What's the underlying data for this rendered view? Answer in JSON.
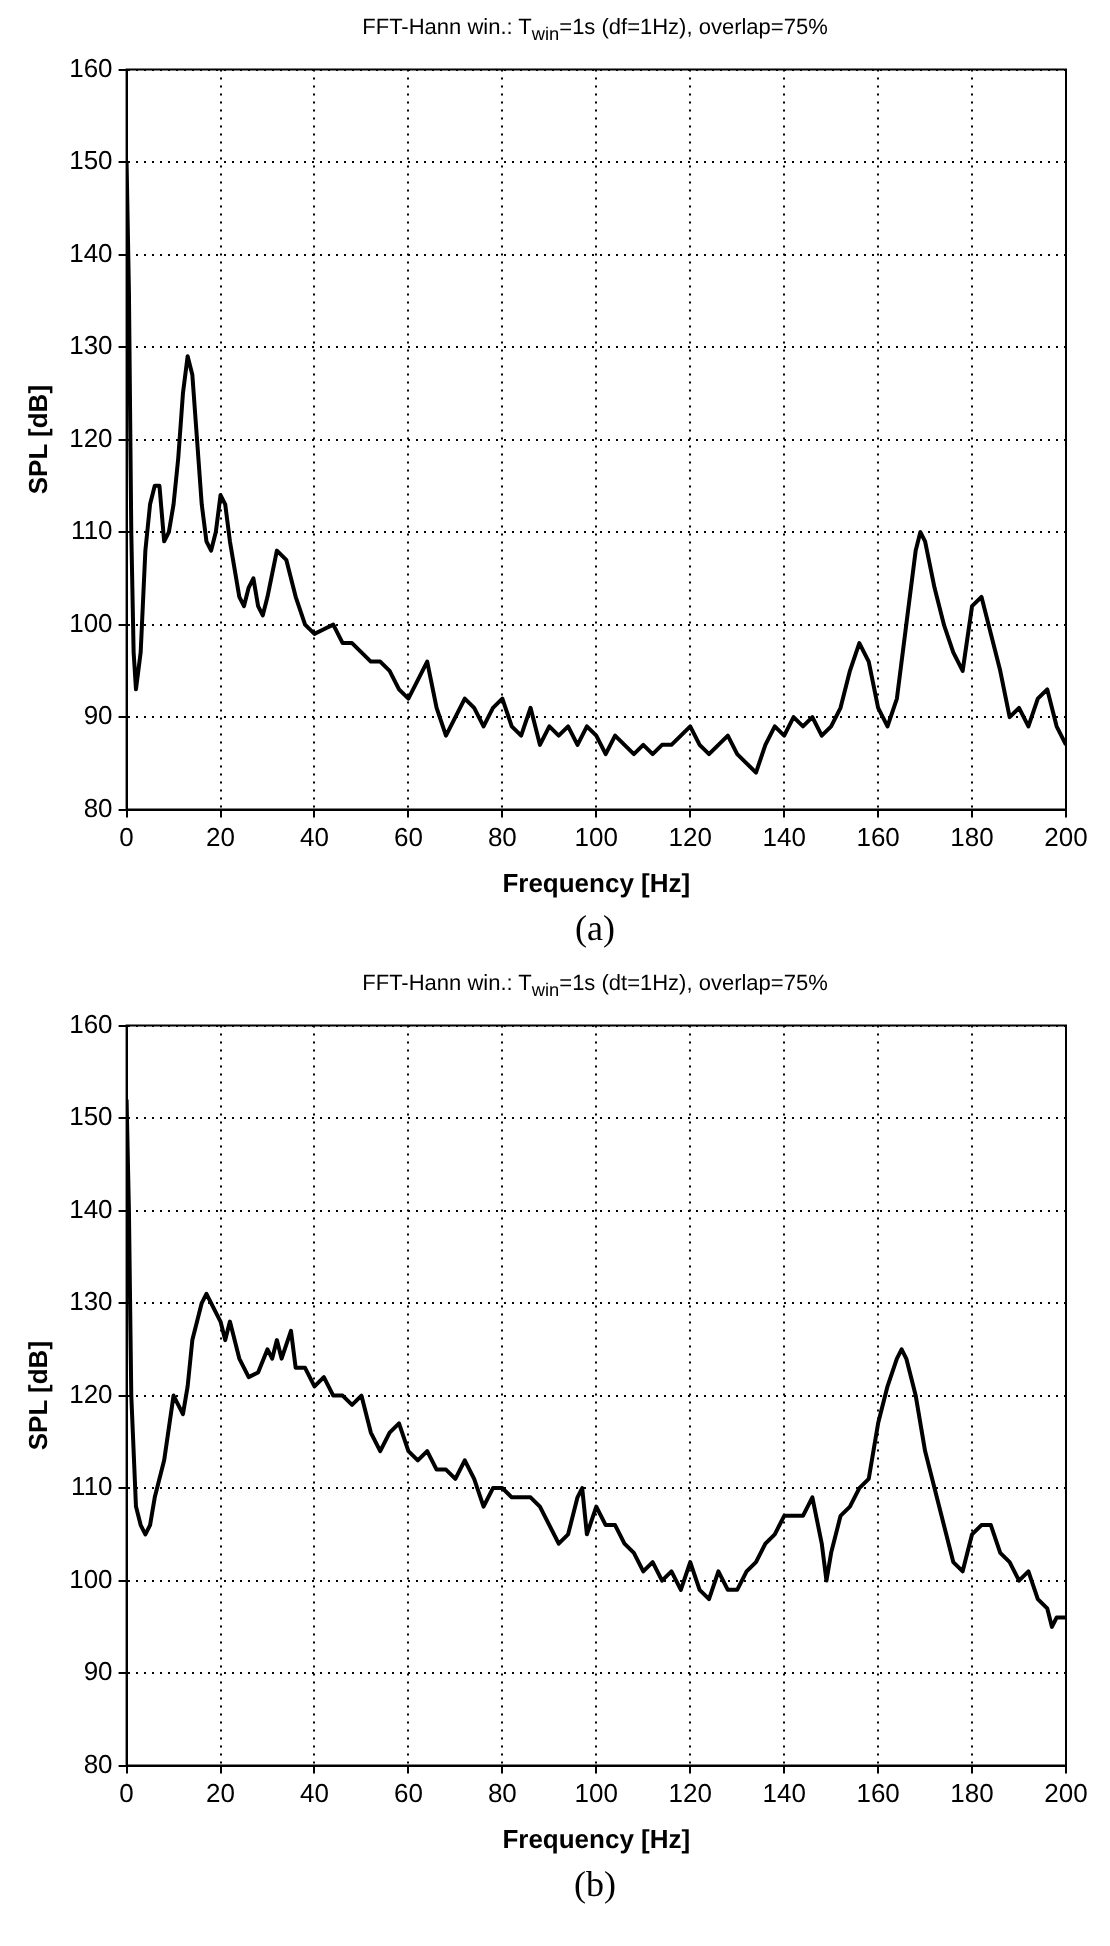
{
  "chart_data": [
    {
      "type": "line",
      "title": "FFT-Hann win.: T$_{win}$=1s (df=1Hz), overlap=75%",
      "xlabel": "Frequency [Hz]",
      "ylabel": "SPL [dB]",
      "annotations": [
        "(a)"
      ],
      "xlim": [
        0,
        200
      ],
      "xticks": [
        0,
        20,
        40,
        60,
        80,
        100,
        120,
        140,
        160,
        180,
        200
      ],
      "ylim": [
        80,
        160
      ],
      "yticks": [
        80,
        90,
        100,
        110,
        120,
        130,
        140,
        150,
        160
      ],
      "grid": true,
      "legend": false,
      "series": [
        {
          "color": "#000000",
          "x": [
            0,
            0.5,
            1,
            1.5,
            2,
            3,
            4,
            5,
            6,
            7,
            8,
            9,
            10,
            11,
            12,
            13,
            14,
            15,
            16,
            17,
            18,
            19,
            20,
            21,
            22,
            23,
            24,
            25,
            26,
            27,
            28,
            29,
            30,
            32,
            34,
            36,
            38,
            40,
            42,
            44,
            46,
            48,
            50,
            52,
            54,
            56,
            58,
            60,
            62,
            64,
            66,
            68,
            70,
            72,
            74,
            76,
            78,
            80,
            82,
            84,
            86,
            88,
            90,
            92,
            94,
            96,
            98,
            100,
            102,
            104,
            106,
            108,
            110,
            112,
            114,
            116,
            118,
            120,
            122,
            124,
            126,
            128,
            130,
            132,
            134,
            136,
            138,
            140,
            142,
            144,
            146,
            148,
            150,
            152,
            154,
            156,
            158,
            160,
            162,
            164,
            166,
            168,
            169,
            170,
            172,
            174,
            176,
            178,
            180,
            182,
            184,
            186,
            188,
            190,
            192,
            194,
            196,
            198,
            200
          ],
          "values": [
            150,
            136,
            110,
            97,
            93,
            97,
            108,
            113,
            115,
            115,
            109,
            110,
            113,
            118,
            125,
            129,
            127,
            120,
            113,
            109,
            108,
            110,
            114,
            113,
            109,
            106,
            103,
            102,
            104,
            105,
            102,
            101,
            103,
            108,
            107,
            103,
            100,
            99,
            99.5,
            100,
            98,
            98,
            97,
            96,
            96,
            95,
            93,
            92,
            94,
            96,
            91,
            88,
            90,
            92,
            91,
            89,
            91,
            92,
            89,
            88,
            91,
            87,
            89,
            88,
            89,
            87,
            89,
            88,
            86,
            88,
            87,
            86,
            87,
            86,
            87,
            87,
            88,
            89,
            87,
            86,
            87,
            88,
            86,
            85,
            84,
            87,
            89,
            88,
            90,
            89,
            90,
            88,
            89,
            91,
            95,
            98,
            96,
            91,
            89,
            92,
            100,
            108,
            110,
            109,
            104,
            100,
            97,
            95,
            102,
            103,
            99,
            95,
            90,
            91,
            89,
            92,
            93,
            89,
            87
          ]
        }
      ]
    },
    {
      "type": "line",
      "title": "FFT-Hann win.: T$_{win}$=1s (dt=1Hz), overlap=75%",
      "xlabel": "Frequency [Hz]",
      "ylabel": "SPL [dB]",
      "annotations": [
        "(b)"
      ],
      "xlim": [
        0,
        200
      ],
      "xticks": [
        0,
        20,
        40,
        60,
        80,
        100,
        120,
        140,
        160,
        180,
        200
      ],
      "ylim": [
        80,
        160
      ],
      "yticks": [
        80,
        90,
        100,
        110,
        120,
        130,
        140,
        150,
        160
      ],
      "grid": true,
      "legend": false,
      "series": [
        {
          "color": "#000000",
          "x": [
            0,
            0.5,
            1,
            2,
            3,
            4,
            5,
            6,
            8,
            10,
            11,
            12,
            13,
            14,
            16,
            17,
            18,
            20,
            21,
            22,
            24,
            26,
            28,
            30,
            31,
            32,
            33,
            35,
            36,
            38,
            40,
            42,
            44,
            46,
            48,
            50,
            52,
            54,
            56,
            58,
            60,
            62,
            64,
            66,
            68,
            70,
            72,
            74,
            76,
            78,
            80,
            82,
            84,
            86,
            88,
            90,
            92,
            94,
            96,
            97,
            98,
            100,
            102,
            104,
            106,
            108,
            110,
            112,
            114,
            116,
            118,
            120,
            122,
            124,
            126,
            128,
            130,
            132,
            134,
            136,
            138,
            140,
            142,
            144,
            146,
            148,
            149,
            150,
            152,
            154,
            156,
            158,
            160,
            162,
            164,
            165,
            166,
            168,
            170,
            172,
            174,
            176,
            178,
            180,
            182,
            184,
            186,
            188,
            190,
            192,
            194,
            196,
            197,
            198,
            200
          ],
          "values": [
            152,
            140,
            120,
            108,
            106,
            105,
            106,
            109,
            113,
            120,
            119,
            118,
            121,
            126,
            130,
            131,
            130,
            128,
            126,
            128,
            124,
            122,
            122.5,
            125,
            124,
            126,
            124,
            127,
            123,
            123,
            121,
            122,
            120,
            120,
            119,
            120,
            116,
            114,
            116,
            117,
            114,
            113,
            114,
            112,
            112,
            111,
            113,
            111,
            108,
            110,
            110,
            109,
            109,
            109,
            108,
            106,
            104,
            105,
            109,
            110,
            105,
            108,
            106,
            106,
            104,
            103,
            101,
            102,
            100,
            101,
            99,
            102,
            99,
            98,
            101,
            99,
            99,
            101,
            102,
            104,
            105,
            107,
            107,
            107,
            109,
            104,
            100,
            103,
            107,
            108,
            110,
            111,
            117,
            121,
            124,
            125,
            124,
            120,
            114,
            110,
            106,
            102,
            101,
            105,
            106,
            106,
            103,
            102,
            100,
            101,
            98,
            97,
            95,
            96,
            96
          ]
        }
      ]
    }
  ]
}
